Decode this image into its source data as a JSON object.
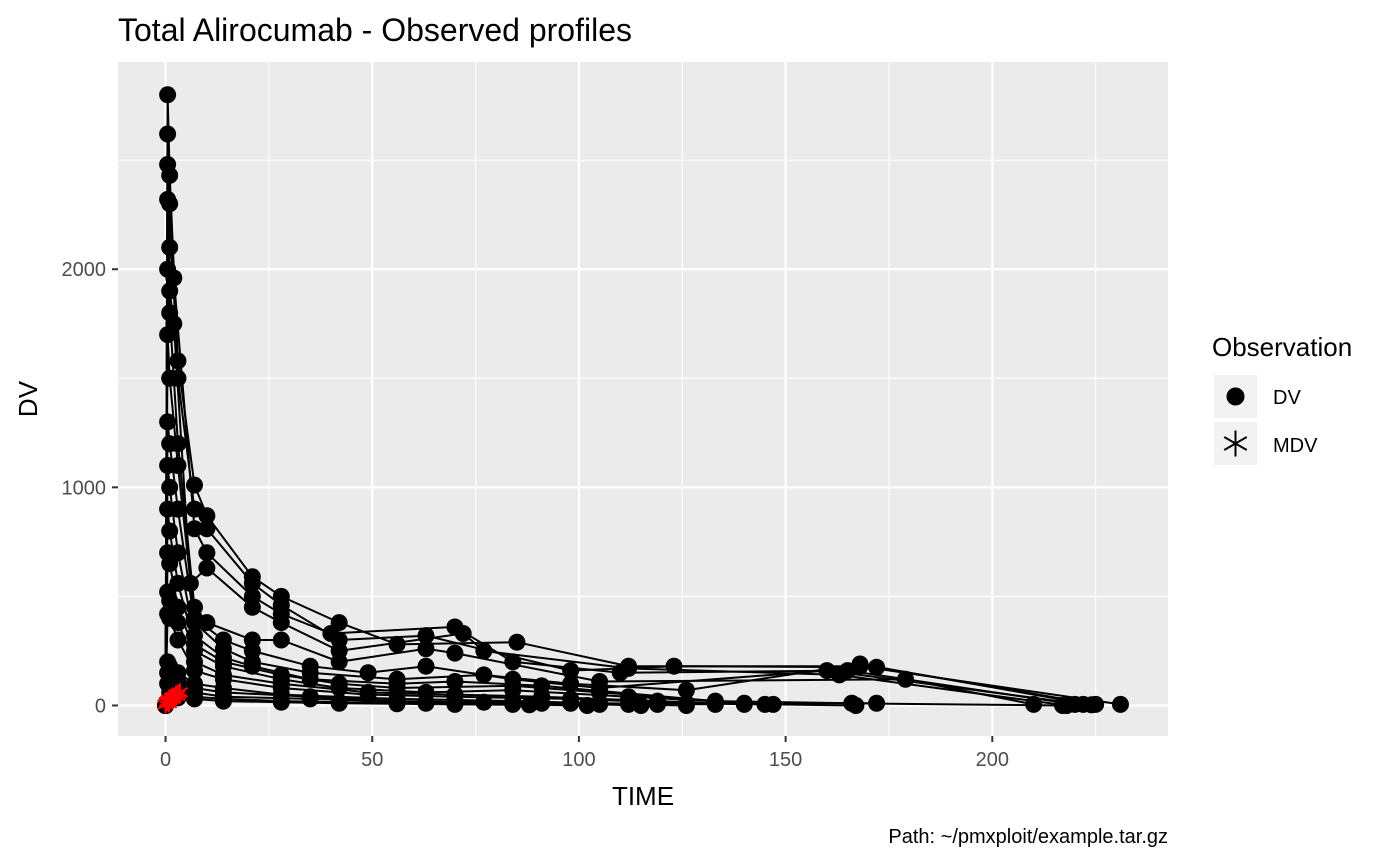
{
  "chart_data": {
    "type": "scatter",
    "title": "Total Alirocumab - Observed profiles",
    "xlabel": "TIME",
    "ylabel": "DV",
    "caption": "Path: ~/pmxploit/example.tar.gz",
    "xlim": [
      -11.5,
      242.5
    ],
    "ylim": [
      -140,
      2950
    ],
    "x_ticks": [
      0,
      50,
      100,
      150,
      200
    ],
    "y_ticks": [
      0,
      1000,
      2000
    ],
    "grid": true,
    "legend": {
      "title": "Observation",
      "position": "right",
      "entries": [
        {
          "label": "DV",
          "shape": "filled-circle",
          "color": "#000000"
        },
        {
          "label": "MDV",
          "shape": "asterisk",
          "color": "#000000"
        }
      ]
    },
    "colors": {
      "panel": "#ebebeb",
      "grid": "#ffffff",
      "dv": "#000000",
      "mdv": "#ff0000"
    },
    "series": [
      {
        "name": "DV",
        "profiles": [
          {
            "x": [
              0,
              0.5,
              1,
              3,
              7,
              10,
              21,
              28,
              42,
              56,
              85,
              112,
              168,
              231
            ],
            "y": [
              0,
              2800,
              2430,
              1580,
              1010,
              870,
              590,
              500,
              380,
              280,
              290,
              180,
              180,
              5
            ]
          },
          {
            "x": [
              0,
              0.5,
              1,
              3,
              7,
              10,
              21,
              28,
              42,
              63,
              98,
              123,
              172,
              225
            ],
            "y": [
              0,
              2620,
              2300,
              1500,
              900,
              810,
              560,
              460,
              300,
              320,
              160,
              180,
              175,
              5
            ]
          },
          {
            "x": [
              0,
              0.5,
              1,
              2,
              7,
              10,
              21,
              28,
              40,
              70,
              84,
              110,
              165,
              220
            ],
            "y": [
              0,
              2480,
              2100,
              1960,
              810,
              700,
              500,
              420,
              330,
              360,
              200,
              150,
              160,
              5
            ]
          },
          {
            "x": [
              0,
              0.5,
              1,
              2,
              6,
              10,
              21,
              28,
              42,
              72,
              77,
              112,
              163,
              218
            ],
            "y": [
              0,
              2320,
              1900,
              1750,
              560,
              630,
              450,
              380,
              250,
              330,
              250,
              170,
              140,
              0
            ]
          },
          {
            "x": [
              0,
              0.5,
              1,
              3,
              7,
              10,
              21,
              28,
              42,
              63,
              70,
              105,
              179,
              210
            ],
            "y": [
              0,
              2000,
              1800,
              1200,
              450,
              380,
              300,
              300,
              200,
              260,
              240,
              110,
              120,
              5
            ]
          },
          {
            "x": [
              0,
              0.5,
              1,
              3,
              7,
              14,
              21,
              35,
              49,
              63,
              84,
              105,
              160,
              222
            ],
            "y": [
              0,
              1700,
              1500,
              1100,
              400,
              300,
              250,
              180,
              150,
              180,
              120,
              80,
              160,
              5
            ]
          },
          {
            "x": [
              0,
              0.5,
              1,
              3,
              7,
              14,
              21,
              35,
              56,
              77,
              98,
              126,
              168,
              224
            ],
            "y": [
              0,
              1300,
              1200,
              900,
              380,
              260,
              200,
              150,
              120,
              140,
              100,
              70,
              190,
              3
            ]
          },
          {
            "x": [
              0,
              0.5,
              1,
              3,
              7,
              14,
              21,
              35,
              56,
              70,
              91,
              133,
              166,
              217
            ],
            "y": [
              0,
              1100,
              1000,
              700,
              320,
              220,
              180,
              120,
              100,
              110,
              90,
              20,
              10,
              0
            ]
          },
          {
            "x": [
              0,
              0.5,
              1,
              3,
              7,
              14,
              28,
              42,
              56,
              84,
              105,
              140,
              172
            ],
            "y": [
              0,
              900,
              800,
              560,
              280,
              200,
              140,
              100,
              80,
              90,
              60,
              10,
              10
            ]
          },
          {
            "x": [
              0,
              0.5,
              1,
              3,
              7,
              14,
              28,
              42,
              63,
              84,
              112,
              147,
              167
            ],
            "y": [
              0,
              700,
              650,
              450,
              250,
              180,
              120,
              80,
              60,
              70,
              40,
              5,
              0
            ]
          },
          {
            "x": [
              0,
              0.5,
              1,
              3,
              7,
              14,
              28,
              49,
              70,
              91,
              119,
              140
            ],
            "y": [
              0,
              520,
              480,
              380,
              200,
              140,
              100,
              60,
              50,
              40,
              20,
              5
            ]
          },
          {
            "x": [
              0,
              0.5,
              1,
              3,
              7,
              14,
              28,
              49,
              70,
              98,
              126,
              145
            ],
            "y": [
              0,
              420,
              400,
              300,
              160,
              120,
              80,
              50,
              40,
              30,
              10,
              5
            ]
          },
          {
            "x": [
              0,
              0.5,
              1,
              3,
              7,
              14,
              28,
              56,
              84,
              105,
              133
            ],
            "y": [
              0,
              200,
              180,
              150,
              100,
              80,
              50,
              30,
              20,
              10,
              5
            ]
          },
          {
            "x": [
              0,
              0.5,
              1,
              3,
              7,
              14,
              35,
              56,
              77,
              98,
              119
            ],
            "y": [
              0,
              150,
              140,
              110,
              80,
              60,
              40,
              20,
              15,
              10,
              5
            ]
          },
          {
            "x": [
              0,
              0.5,
              1,
              3,
              7,
              14,
              35,
              63,
              91,
              112,
              126
            ],
            "y": [
              0,
              100,
              90,
              80,
              60,
              40,
              30,
              15,
              10,
              5,
              0
            ]
          },
          {
            "x": [
              0,
              1,
              3,
              7,
              14,
              28,
              42,
              63,
              84,
              105,
              115
            ],
            "y": [
              0,
              60,
              50,
              40,
              30,
              20,
              15,
              10,
              5,
              5,
              0
            ]
          },
          {
            "x": [
              0,
              1,
              3,
              7,
              14,
              28,
              42,
              56,
              70,
              88,
              102
            ],
            "y": [
              0,
              40,
              35,
              30,
              20,
              15,
              10,
              8,
              5,
              3,
              0
            ]
          }
        ]
      },
      {
        "name": "MDV",
        "x": [
          0,
          0.3,
          0.6,
          1,
          1.5,
          2,
          2.5,
          3,
          3.5,
          0.8,
          1.8,
          2.8
        ],
        "y": [
          5,
          15,
          20,
          25,
          35,
          40,
          50,
          55,
          60,
          10,
          30,
          45
        ]
      }
    ]
  }
}
